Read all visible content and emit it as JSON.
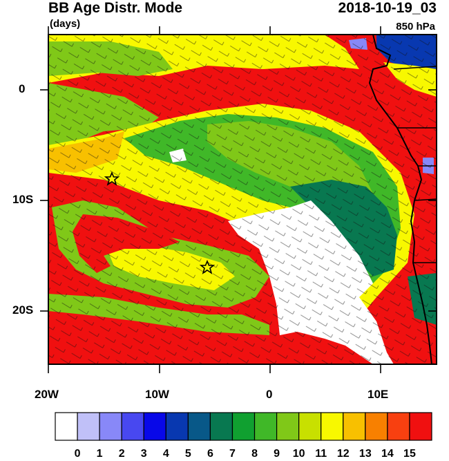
{
  "title": "BB Age Distr. Mode",
  "units": "(days)",
  "time": "2018-10-19_03",
  "level": "850 hPa",
  "lat_labels": [
    "0",
    "10S",
    "20S"
  ],
  "lon_labels": [
    "20W",
    "10W",
    "0",
    "10E"
  ],
  "colorbar": {
    "labels": [
      "0",
      "1",
      "2",
      "3",
      "4",
      "5",
      "6",
      "7",
      "8",
      "9",
      "10",
      "11",
      "12",
      "13",
      "14",
      "15"
    ],
    "colors": [
      "#ffffff",
      "#c0c0f8",
      "#8888f8",
      "#4848f0",
      "#0808e8",
      "#0838b0",
      "#085888",
      "#087850",
      "#10a030",
      "#40b828",
      "#80c818",
      "#c8e000",
      "#f8f800",
      "#f8c000",
      "#f88000",
      "#f84010",
      "#f01010"
    ]
  },
  "markers": [
    "star-marker-north",
    "star-marker-south"
  ]
}
